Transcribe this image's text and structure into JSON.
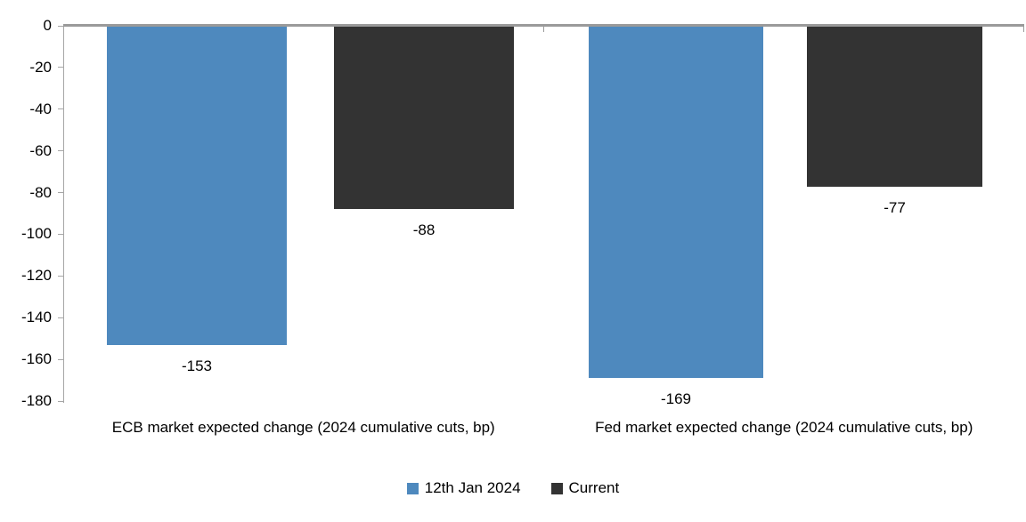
{
  "chart_data": {
    "type": "bar",
    "orientation": "vertical",
    "categories": [
      "ECB market expected change (2024 cumulative cuts, bp)",
      "Fed market expected change (2024 cumulative cuts, bp)"
    ],
    "series": [
      {
        "name": "12th Jan 2024",
        "color": "#4E89BE",
        "values": [
          -153,
          -169
        ]
      },
      {
        "name": "Current",
        "color": "#333333",
        "values": [
          -88,
          -77
        ]
      }
    ],
    "title": "",
    "xlabel": "",
    "ylabel": "",
    "ylim": [
      -180,
      0
    ],
    "y_tick_step": 20,
    "y_ticks": [
      0,
      -20,
      -40,
      -60,
      -80,
      -100,
      -120,
      -140,
      -160,
      -180
    ],
    "grid": false,
    "data_labels": true,
    "legend_position": "bottom",
    "axis_color": "#9a9a9a",
    "text_color": "#000000",
    "background_color": "#ffffff"
  }
}
